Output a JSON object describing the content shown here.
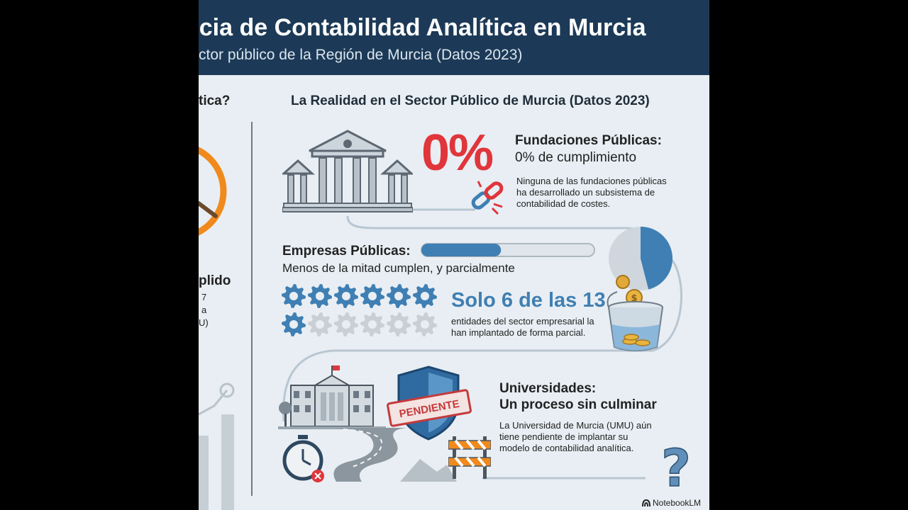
{
  "header": {
    "title": "ncia de Contabilidad Analítica en Murcia",
    "subtitle": "ctor público de la Región de Murcia (Datos 2023)"
  },
  "left_panel": {
    "heading_fragment": "tica?",
    "status_fragment": "plido",
    "line_fragment_1": "7",
    "line_fragment_2": "a",
    "line_fragment_3": "U)"
  },
  "section_title": "La Realidad en el Sector Público de Murcia (Datos 2023)",
  "fundaciones": {
    "big_value": "0%",
    "title": "Fundaciones Públicas:",
    "subtitle": "0% de cumplimiento",
    "desc_line_1": "Ninguna de las fundaciones públicas",
    "desc_line_2": "ha desarrollado un subsistema de",
    "desc_line_3": "contabilidad de costes."
  },
  "empresas": {
    "title": "Empresas Públicas:",
    "subtitle": "Menos de la mitad cumplen, y parcialmente",
    "highlight": "Solo 6 de las 13",
    "desc_line_1": "entidades del sector empresarial la",
    "desc_line_2": "han implantado de forma parcial.",
    "progress_fraction": 0.46,
    "implemented_count": 6,
    "total_count": 13,
    "pie_fraction": 0.46
  },
  "universidades": {
    "title_line_1": "Universidades:",
    "title_line_2": "Un proceso sin culminar",
    "stamp": "PENDIENTE",
    "desc_line_1": "La Universidad de Murcia (UMU) aún",
    "desc_line_2": "tiene pendiente de implantar su",
    "desc_line_3": "modelo de contabilidad analítica."
  },
  "footer": {
    "brand": "NotebookLM"
  },
  "colors": {
    "header_bg": "#1c3a57",
    "accent_red": "#e0353b",
    "accent_blue": "#3f7fb3",
    "gear_gray": "#c9cfd5",
    "orange": "#f08a1c"
  }
}
